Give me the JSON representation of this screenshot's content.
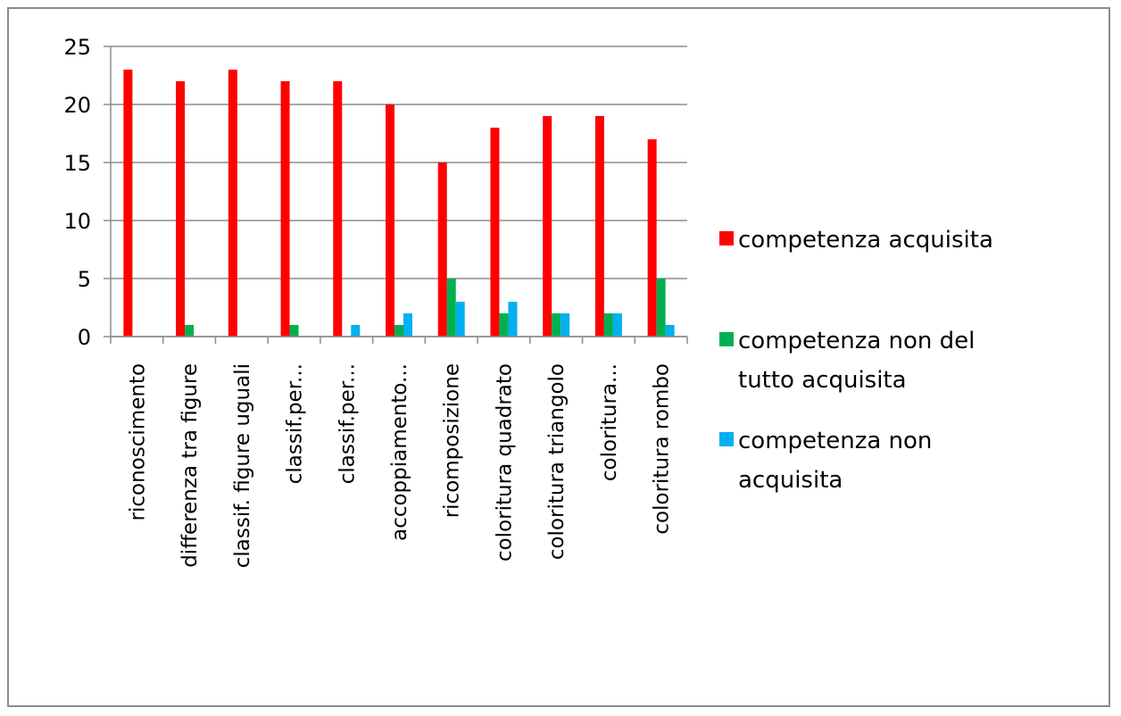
{
  "chart_data": {
    "type": "bar",
    "categories": [
      "riconoscimento",
      "differenza tra figure",
      "classif. figure uguali",
      "classif.per...",
      "classif.per...",
      "accoppiamento...",
      "ricomposizione",
      "coloritura quadrato",
      "coloritura triangolo",
      "coloritura...",
      "coloritura rombo"
    ],
    "series": [
      {
        "name": "competenza acquisita",
        "color": "#ff0000",
        "values": [
          23,
          22,
          23,
          22,
          22,
          20,
          15,
          18,
          19,
          19,
          17
        ]
      },
      {
        "name": "competenza non del tutto acquisita",
        "color": "#00b050",
        "values": [
          0,
          1,
          0,
          1,
          0,
          1,
          5,
          2,
          2,
          2,
          5
        ]
      },
      {
        "name": "competenza non acquisita",
        "color": "#00b0f0",
        "values": [
          0,
          0,
          0,
          0,
          1,
          2,
          3,
          3,
          2,
          2,
          1
        ]
      }
    ],
    "yticks": [
      "0",
      "5",
      "10",
      "15",
      "20",
      "25"
    ],
    "ylim": [
      0,
      25
    ],
    "grid": true,
    "legend_position": "right",
    "legend_lines": [
      [
        "competenza acquisita"
      ],
      [
        "competenza non del",
        "tutto acquisita"
      ],
      [
        "competenza non",
        "acquisita"
      ]
    ]
  }
}
